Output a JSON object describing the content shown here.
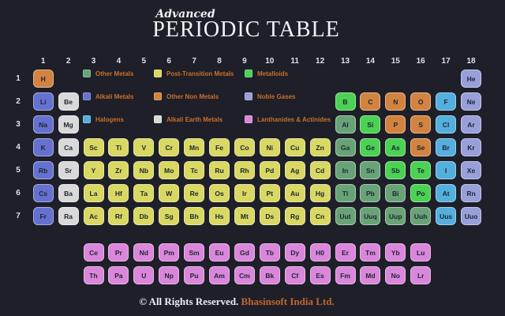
{
  "title": {
    "pre": "Advanced",
    "main": "PERIODIC TABLE"
  },
  "footer": {
    "rights": "© All Rights Reserved.",
    "brand": "Bhasinsoft India Ltd."
  },
  "colors": {
    "alk": "#6471cf",
    "ae": "#d9d9d9",
    "pt": "#d8d863",
    "om": "#68a377",
    "met": "#4bd153",
    "onm": "#d2833f",
    "hal": "#54aede",
    "nob": "#989fd9",
    "la": "#da86da",
    "background": "#1e1f28",
    "legend_text": "#c9702b",
    "tile_text": "#1d2530",
    "axis_text": "#dde2ec"
  },
  "axis": {
    "groups": [
      "1",
      "2",
      "3",
      "4",
      "5",
      "6",
      "7",
      "8",
      "9",
      "10",
      "11",
      "12",
      "13",
      "14",
      "15",
      "16",
      "17",
      "18"
    ],
    "periods": [
      "1",
      "2",
      "3",
      "4",
      "5",
      "6",
      "7"
    ]
  },
  "legend": {
    "items": [
      {
        "label": "Other Metals",
        "cat": "om"
      },
      {
        "label": "Post-Transition Metals",
        "cat": "pt"
      },
      {
        "label": "Metalloids",
        "cat": "met"
      },
      {
        "label": "Alkali Metals",
        "cat": "alk"
      },
      {
        "label": "Other Non Metals",
        "cat": "onm"
      },
      {
        "label": "Noble Gases",
        "cat": "nob"
      },
      {
        "label": "Halogens",
        "cat": "hal"
      },
      {
        "label": "Alkali Earth Metals",
        "cat": "ae"
      },
      {
        "label": "Lanthanides & Actinides",
        "cat": "la"
      }
    ]
  },
  "elements": [
    {
      "s": "H",
      "r": 1,
      "g": 1,
      "c": "onm"
    },
    {
      "s": "He",
      "r": 1,
      "g": 18,
      "c": "nob"
    },
    {
      "s": "Li",
      "r": 2,
      "g": 1,
      "c": "alk"
    },
    {
      "s": "Be",
      "r": 2,
      "g": 2,
      "c": "ae"
    },
    {
      "s": "B",
      "r": 2,
      "g": 13,
      "c": "met"
    },
    {
      "s": "C",
      "r": 2,
      "g": 14,
      "c": "onm"
    },
    {
      "s": "N",
      "r": 2,
      "g": 15,
      "c": "onm"
    },
    {
      "s": "O",
      "r": 2,
      "g": 16,
      "c": "onm"
    },
    {
      "s": "F",
      "r": 2,
      "g": 17,
      "c": "hal"
    },
    {
      "s": "Ne",
      "r": 2,
      "g": 18,
      "c": "nob"
    },
    {
      "s": "Na",
      "r": 3,
      "g": 1,
      "c": "alk"
    },
    {
      "s": "Mg",
      "r": 3,
      "g": 2,
      "c": "ae"
    },
    {
      "s": "Al",
      "r": 3,
      "g": 13,
      "c": "om"
    },
    {
      "s": "Si",
      "r": 3,
      "g": 14,
      "c": "met"
    },
    {
      "s": "P",
      "r": 3,
      "g": 15,
      "c": "onm"
    },
    {
      "s": "S",
      "r": 3,
      "g": 16,
      "c": "onm"
    },
    {
      "s": "Cl",
      "r": 3,
      "g": 17,
      "c": "hal"
    },
    {
      "s": "Ar",
      "r": 3,
      "g": 18,
      "c": "nob"
    },
    {
      "s": "K",
      "r": 4,
      "g": 1,
      "c": "alk"
    },
    {
      "s": "Ca",
      "r": 4,
      "g": 2,
      "c": "ae"
    },
    {
      "s": "Sc",
      "r": 4,
      "g": 3,
      "c": "pt"
    },
    {
      "s": "Ti",
      "r": 4,
      "g": 4,
      "c": "pt"
    },
    {
      "s": "V",
      "r": 4,
      "g": 5,
      "c": "pt"
    },
    {
      "s": "Cr",
      "r": 4,
      "g": 6,
      "c": "pt"
    },
    {
      "s": "Mn",
      "r": 4,
      "g": 7,
      "c": "pt"
    },
    {
      "s": "Fe",
      "r": 4,
      "g": 8,
      "c": "pt"
    },
    {
      "s": "Co",
      "r": 4,
      "g": 9,
      "c": "pt"
    },
    {
      "s": "Ni",
      "r": 4,
      "g": 10,
      "c": "pt"
    },
    {
      "s": "Cu",
      "r": 4,
      "g": 11,
      "c": "pt"
    },
    {
      "s": "Zn",
      "r": 4,
      "g": 12,
      "c": "pt"
    },
    {
      "s": "Ga",
      "r": 4,
      "g": 13,
      "c": "om"
    },
    {
      "s": "Ge",
      "r": 4,
      "g": 14,
      "c": "met"
    },
    {
      "s": "As",
      "r": 4,
      "g": 15,
      "c": "met"
    },
    {
      "s": "Se",
      "r": 4,
      "g": 16,
      "c": "onm"
    },
    {
      "s": "Br",
      "r": 4,
      "g": 17,
      "c": "hal"
    },
    {
      "s": "Kr",
      "r": 4,
      "g": 18,
      "c": "nob"
    },
    {
      "s": "Rb",
      "r": 5,
      "g": 1,
      "c": "alk"
    },
    {
      "s": "Sr",
      "r": 5,
      "g": 2,
      "c": "ae"
    },
    {
      "s": "Y",
      "r": 5,
      "g": 3,
      "c": "pt"
    },
    {
      "s": "Zr",
      "r": 5,
      "g": 4,
      "c": "pt"
    },
    {
      "s": "Nb",
      "r": 5,
      "g": 5,
      "c": "pt"
    },
    {
      "s": "Mo",
      "r": 5,
      "g": 6,
      "c": "pt"
    },
    {
      "s": "Tc",
      "r": 5,
      "g": 7,
      "c": "pt"
    },
    {
      "s": "Ru",
      "r": 5,
      "g": 8,
      "c": "pt"
    },
    {
      "s": "Rh",
      "r": 5,
      "g": 9,
      "c": "pt"
    },
    {
      "s": "Pd",
      "r": 5,
      "g": 10,
      "c": "pt"
    },
    {
      "s": "Ag",
      "r": 5,
      "g": 11,
      "c": "pt"
    },
    {
      "s": "Cd",
      "r": 5,
      "g": 12,
      "c": "pt"
    },
    {
      "s": "In",
      "r": 5,
      "g": 13,
      "c": "om"
    },
    {
      "s": "Sn",
      "r": 5,
      "g": 14,
      "c": "om"
    },
    {
      "s": "Sb",
      "r": 5,
      "g": 15,
      "c": "met"
    },
    {
      "s": "Te",
      "r": 5,
      "g": 16,
      "c": "met"
    },
    {
      "s": "I",
      "r": 5,
      "g": 17,
      "c": "hal"
    },
    {
      "s": "Xe",
      "r": 5,
      "g": 18,
      "c": "nob"
    },
    {
      "s": "Cs",
      "r": 6,
      "g": 1,
      "c": "alk"
    },
    {
      "s": "Ba",
      "r": 6,
      "g": 2,
      "c": "ae"
    },
    {
      "s": "La",
      "r": 6,
      "g": 3,
      "c": "pt"
    },
    {
      "s": "Hf",
      "r": 6,
      "g": 4,
      "c": "pt"
    },
    {
      "s": "Ta",
      "r": 6,
      "g": 5,
      "c": "pt"
    },
    {
      "s": "W",
      "r": 6,
      "g": 6,
      "c": "pt"
    },
    {
      "s": "Re",
      "r": 6,
      "g": 7,
      "c": "pt"
    },
    {
      "s": "Os",
      "r": 6,
      "g": 8,
      "c": "pt"
    },
    {
      "s": "Ir",
      "r": 6,
      "g": 9,
      "c": "pt"
    },
    {
      "s": "Pt",
      "r": 6,
      "g": 10,
      "c": "pt"
    },
    {
      "s": "Au",
      "r": 6,
      "g": 11,
      "c": "pt"
    },
    {
      "s": "Hg",
      "r": 6,
      "g": 12,
      "c": "pt"
    },
    {
      "s": "Tl",
      "r": 6,
      "g": 13,
      "c": "om"
    },
    {
      "s": "Pb",
      "r": 6,
      "g": 14,
      "c": "om"
    },
    {
      "s": "Bi",
      "r": 6,
      "g": 15,
      "c": "om"
    },
    {
      "s": "Po",
      "r": 6,
      "g": 16,
      "c": "met"
    },
    {
      "s": "At",
      "r": 6,
      "g": 17,
      "c": "hal"
    },
    {
      "s": "Rn",
      "r": 6,
      "g": 18,
      "c": "nob"
    },
    {
      "s": "Fr",
      "r": 7,
      "g": 1,
      "c": "alk"
    },
    {
      "s": "Ra",
      "r": 7,
      "g": 2,
      "c": "ae"
    },
    {
      "s": "Ac",
      "r": 7,
      "g": 3,
      "c": "pt"
    },
    {
      "s": "Rf",
      "r": 7,
      "g": 4,
      "c": "pt"
    },
    {
      "s": "Db",
      "r": 7,
      "g": 5,
      "c": "pt"
    },
    {
      "s": "Sg",
      "r": 7,
      "g": 6,
      "c": "pt"
    },
    {
      "s": "Bh",
      "r": 7,
      "g": 7,
      "c": "pt"
    },
    {
      "s": "Hs",
      "r": 7,
      "g": 8,
      "c": "pt"
    },
    {
      "s": "Mt",
      "r": 7,
      "g": 9,
      "c": "pt"
    },
    {
      "s": "Ds",
      "r": 7,
      "g": 10,
      "c": "pt"
    },
    {
      "s": "Rg",
      "r": 7,
      "g": 11,
      "c": "pt"
    },
    {
      "s": "Cn",
      "r": 7,
      "g": 12,
      "c": "pt"
    },
    {
      "s": "Uut",
      "r": 7,
      "g": 13,
      "c": "om"
    },
    {
      "s": "Uuq",
      "r": 7,
      "g": 14,
      "c": "om"
    },
    {
      "s": "Uup",
      "r": 7,
      "g": 15,
      "c": "om"
    },
    {
      "s": "Uuh",
      "r": 7,
      "g": 16,
      "c": "om"
    },
    {
      "s": "Uus",
      "r": 7,
      "g": 17,
      "c": "hal"
    },
    {
      "s": "Uuo",
      "r": 7,
      "g": 18,
      "c": "nob"
    },
    {
      "s": "Ce",
      "r": 8,
      "g": 3,
      "c": "la"
    },
    {
      "s": "Pr",
      "r": 8,
      "g": 4,
      "c": "la"
    },
    {
      "s": "Nd",
      "r": 8,
      "g": 5,
      "c": "la"
    },
    {
      "s": "Pm",
      "r": 8,
      "g": 6,
      "c": "la"
    },
    {
      "s": "Sm",
      "r": 8,
      "g": 7,
      "c": "la"
    },
    {
      "s": "Eu",
      "r": 8,
      "g": 8,
      "c": "la"
    },
    {
      "s": "Gd",
      "r": 8,
      "g": 9,
      "c": "la"
    },
    {
      "s": "Tb",
      "r": 8,
      "g": 10,
      "c": "la"
    },
    {
      "s": "Dy",
      "r": 8,
      "g": 11,
      "c": "la"
    },
    {
      "s": "H0",
      "r": 8,
      "g": 12,
      "c": "la"
    },
    {
      "s": "Er",
      "r": 8,
      "g": 13,
      "c": "la"
    },
    {
      "s": "Tm",
      "r": 8,
      "g": 14,
      "c": "la"
    },
    {
      "s": "Yb",
      "r": 8,
      "g": 15,
      "c": "la"
    },
    {
      "s": "Lu",
      "r": 8,
      "g": 16,
      "c": "la"
    },
    {
      "s": "Th",
      "r": 9,
      "g": 3,
      "c": "la"
    },
    {
      "s": "Pa",
      "r": 9,
      "g": 4,
      "c": "la"
    },
    {
      "s": "U",
      "r": 9,
      "g": 5,
      "c": "la"
    },
    {
      "s": "Np",
      "r": 9,
      "g": 6,
      "c": "la"
    },
    {
      "s": "Pu",
      "r": 9,
      "g": 7,
      "c": "la"
    },
    {
      "s": "Am",
      "r": 9,
      "g": 8,
      "c": "la"
    },
    {
      "s": "Cm",
      "r": 9,
      "g": 9,
      "c": "la"
    },
    {
      "s": "Bk",
      "r": 9,
      "g": 10,
      "c": "la"
    },
    {
      "s": "Cf",
      "r": 9,
      "g": 11,
      "c": "la"
    },
    {
      "s": "Es",
      "r": 9,
      "g": 12,
      "c": "la"
    },
    {
      "s": "Fm",
      "r": 9,
      "g": 13,
      "c": "la"
    },
    {
      "s": "Md",
      "r": 9,
      "g": 14,
      "c": "la"
    },
    {
      "s": "No",
      "r": 9,
      "g": 15,
      "c": "la"
    },
    {
      "s": "Lr",
      "r": 9,
      "g": 16,
      "c": "la"
    }
  ]
}
